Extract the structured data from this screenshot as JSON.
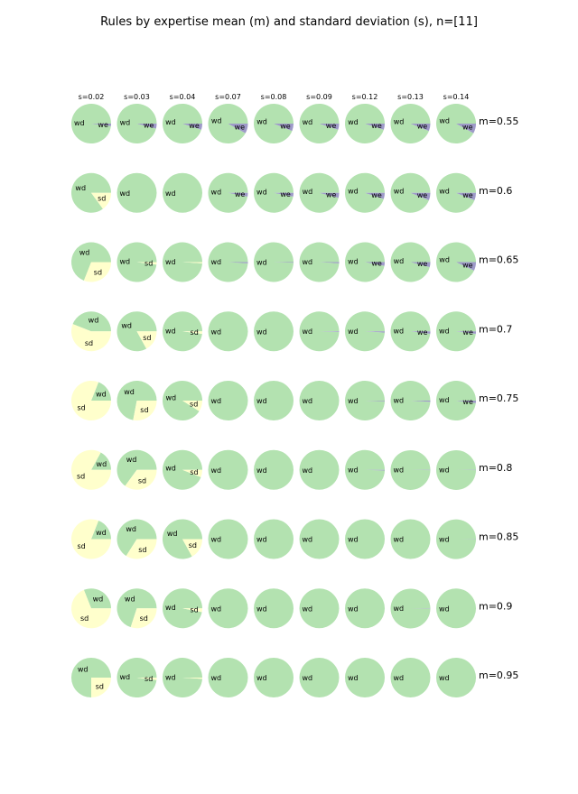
{
  "chart_data": {
    "type": "pie",
    "title": "Rules by expertise mean (m) and standard deviation (s), n=[11]",
    "columns": [
      "s=0.02",
      "s=0.03",
      "s=0.04",
      "s=0.07",
      "s=0.08",
      "s=0.09",
      "s=0.12",
      "s=0.13",
      "s=0.14"
    ],
    "rows": [
      "m=0.55",
      "m=0.6",
      "m=0.65",
      "m=0.7",
      "m=0.75",
      "m=0.8",
      "m=0.85",
      "m=0.9",
      "m=0.95"
    ],
    "categories": [
      "wd",
      "sd",
      "we"
    ],
    "colors": {
      "wd": "#b3e2b0",
      "sd": "#ffffcc",
      "we": "#9e9ac8"
    },
    "values": [
      [
        [
          0.98,
          0,
          0.02
        ],
        [
          0.96,
          0,
          0.04
        ],
        [
          0.95,
          0,
          0.05
        ],
        [
          0.92,
          0,
          0.08
        ],
        [
          0.94,
          0,
          0.06
        ],
        [
          0.95,
          0,
          0.05
        ],
        [
          0.95,
          0,
          0.05
        ],
        [
          0.94,
          0,
          0.06
        ],
        [
          0.92,
          0,
          0.08
        ]
      ],
      [
        [
          0.85,
          0.15,
          0
        ],
        [
          1,
          0,
          0
        ],
        [
          1,
          0,
          0
        ],
        [
          0.97,
          0,
          0.03
        ],
        [
          0.97,
          0,
          0.03
        ],
        [
          0.96,
          0,
          0.04
        ],
        [
          0.95,
          0,
          0.05
        ],
        [
          0.94,
          0,
          0.06
        ],
        [
          0.94,
          0,
          0.06
        ]
      ],
      [
        [
          0.69,
          0.31,
          0
        ],
        [
          0.98,
          0.02,
          0
        ],
        [
          0.99,
          0.01,
          0
        ],
        [
          0.99,
          0,
          0.01
        ],
        [
          0.995,
          0,
          0.005
        ],
        [
          0.99,
          0,
          0.01
        ],
        [
          0.97,
          0,
          0.03
        ],
        [
          0.96,
          0,
          0.04
        ],
        [
          0.93,
          0,
          0.07
        ]
      ],
      [
        [
          0.44,
          0.56,
          0
        ],
        [
          0.83,
          0.17,
          0
        ],
        [
          0.98,
          0.02,
          0
        ],
        [
          1,
          0,
          0
        ],
        [
          1,
          0,
          0
        ],
        [
          0.995,
          0,
          0.005
        ],
        [
          0.99,
          0,
          0.01
        ],
        [
          0.98,
          0,
          0.02
        ],
        [
          0.98,
          0,
          0.02
        ]
      ],
      [
        [
          0.19,
          0.81,
          0
        ],
        [
          0.72,
          0.28,
          0
        ],
        [
          0.91,
          0.09,
          0
        ],
        [
          1,
          0,
          0
        ],
        [
          1,
          0,
          0
        ],
        [
          1,
          0,
          0
        ],
        [
          0.995,
          0,
          0.005
        ],
        [
          0.99,
          0,
          0.01
        ],
        [
          0.98,
          0,
          0.02
        ]
      ],
      [
        [
          0.17,
          0.83,
          0
        ],
        [
          0.65,
          0.35,
          0
        ],
        [
          0.94,
          0.06,
          0
        ],
        [
          1,
          0,
          0
        ],
        [
          1,
          0,
          0
        ],
        [
          1,
          0,
          0
        ],
        [
          0.995,
          0,
          0.005
        ],
        [
          0.997,
          0,
          0.003
        ],
        [
          0.997,
          0,
          0.003
        ]
      ],
      [
        [
          0.19,
          0.81,
          0
        ],
        [
          0.66,
          0.34,
          0
        ],
        [
          0.83,
          0.17,
          0
        ],
        [
          1,
          0,
          0
        ],
        [
          1,
          0,
          0
        ],
        [
          1,
          0,
          0
        ],
        [
          1,
          0,
          0
        ],
        [
          1,
          0,
          0
        ],
        [
          0.998,
          0,
          0.002
        ]
      ],
      [
        [
          0.31,
          0.69,
          0
        ],
        [
          0.7,
          0.3,
          0
        ],
        [
          0.97,
          0.03,
          0
        ],
        [
          1,
          0,
          0
        ],
        [
          1,
          0,
          0
        ],
        [
          1,
          0,
          0
        ],
        [
          1,
          0,
          0
        ],
        [
          0.997,
          0,
          0.003
        ],
        [
          1,
          0,
          0
        ]
      ],
      [
        [
          0.75,
          0.25,
          0
        ],
        [
          0.98,
          0.02,
          0
        ],
        [
          0.99,
          0.01,
          0
        ],
        [
          1,
          0,
          0
        ],
        [
          1,
          0,
          0
        ],
        [
          1,
          0,
          0
        ],
        [
          1,
          0,
          0
        ],
        [
          1,
          0,
          0
        ],
        [
          1,
          0,
          0
        ]
      ]
    ]
  }
}
